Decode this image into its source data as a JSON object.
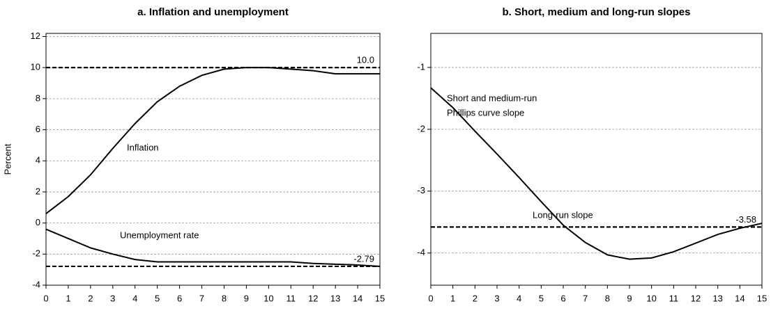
{
  "chart_data": [
    {
      "type": "line",
      "title": "a. Inflation and unemployment",
      "y_label": "Percent",
      "x": [
        0,
        1,
        2,
        3,
        4,
        5,
        6,
        7,
        8,
        9,
        10,
        11,
        12,
        13,
        14,
        15
      ],
      "series": [
        {
          "name": "Inflation",
          "color": "#000000",
          "values": [
            0.6,
            1.7,
            3.1,
            4.8,
            6.4,
            7.8,
            8.8,
            9.5,
            9.9,
            10.0,
            10.0,
            9.9,
            9.8,
            9.6,
            9.6,
            9.6
          ]
        },
        {
          "name": "Unemployment rate",
          "color": "#000000",
          "values": [
            -0.4,
            -1.0,
            -1.6,
            -2.0,
            -2.35,
            -2.5,
            -2.5,
            -2.5,
            -2.5,
            -2.5,
            -2.5,
            -2.5,
            -2.6,
            -2.65,
            -2.7,
            -2.79
          ]
        }
      ],
      "reference_lines": [
        {
          "value": 10,
          "label": "10.0"
        },
        -2.79
      ],
      "xlim": [
        0,
        15
      ],
      "xticks": [
        0,
        1,
        2,
        3,
        4,
        5,
        6,
        7,
        8,
        9,
        10,
        11,
        12,
        13,
        14,
        15
      ],
      "ylim": [
        -4,
        12.2
      ],
      "yticks": [
        -4,
        -2,
        0,
        2,
        4,
        6,
        8,
        10,
        12
      ],
      "grid": true
    },
    {
      "type": "line",
      "title": "b. Short, medium and long-run slopes",
      "x": [
        0,
        1,
        2,
        3,
        4,
        5,
        6,
        7,
        8,
        9,
        10,
        11,
        12,
        13,
        14,
        15
      ],
      "series": [
        {
          "name": "Short and medium-run Phillips curve slope",
          "color": "#000000",
          "values": [
            -1.33,
            -1.65,
            -2.03,
            -2.4,
            -2.78,
            -3.17,
            -3.55,
            -3.83,
            -4.03,
            -4.1,
            -4.08,
            -3.98,
            -3.84,
            -3.7,
            -3.6,
            -3.52
          ]
        }
      ],
      "annotations": [
        "Short and medium-run",
        "Phillips curve slope",
        "Long-run slope"
      ],
      "reference_lines": [
        -3.58
      ],
      "xlim": [
        0,
        15
      ],
      "xticks": [
        0,
        1,
        2,
        3,
        4,
        5,
        6,
        7,
        8,
        9,
        10,
        11,
        12,
        13,
        14,
        15
      ],
      "ylim": [
        -4.52,
        -0.45
      ],
      "yticks": [
        -4,
        -3,
        -2,
        -1
      ],
      "grid": true
    }
  ]
}
